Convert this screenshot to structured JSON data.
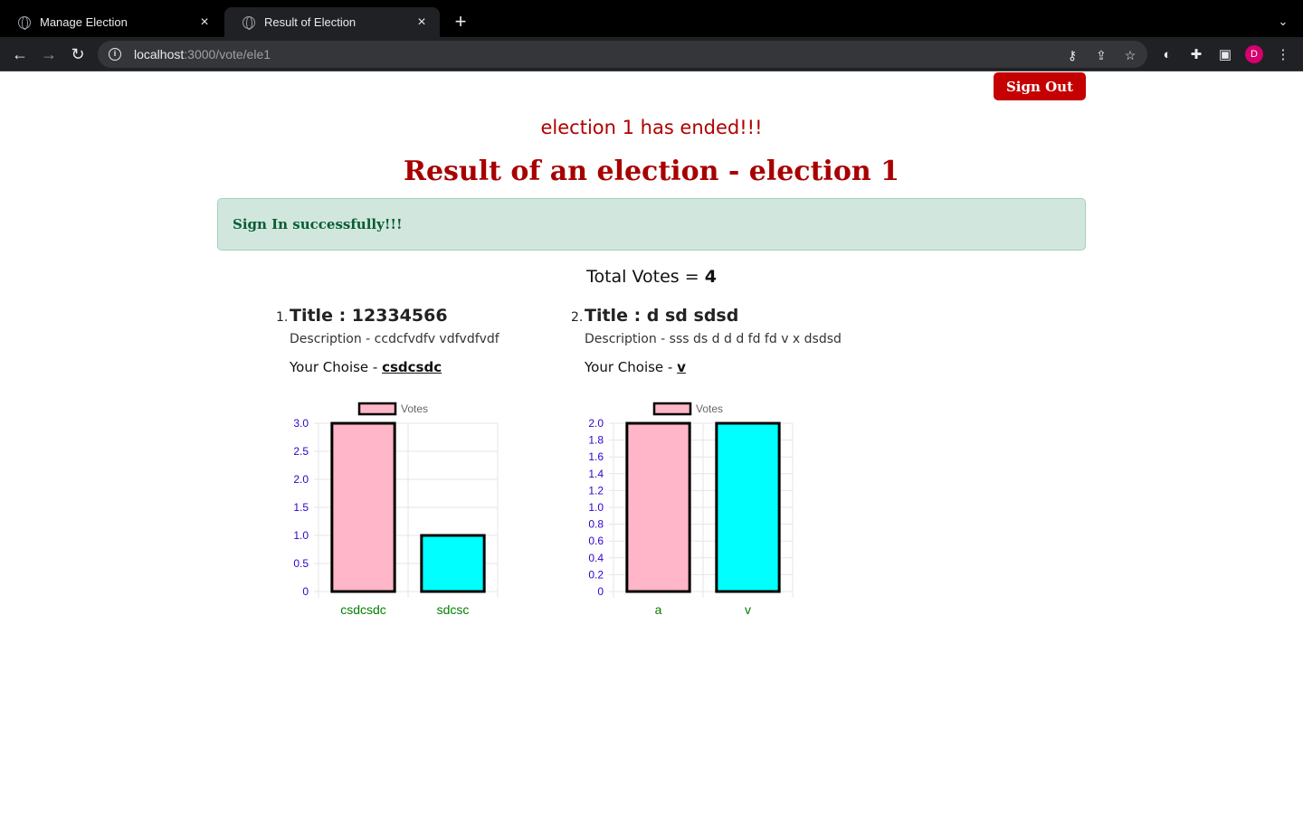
{
  "browser": {
    "tabs": [
      {
        "title": "Manage Election",
        "active": false
      },
      {
        "title": "Result of Election",
        "active": true
      }
    ],
    "url_host": "localhost",
    "url_path": ":3000/vote/ele1",
    "profile_initial": "D"
  },
  "header": {
    "signout_label": "Sign Out",
    "ended_text": "election 1 has ended!!!",
    "result_title": "Result of an election - election 1",
    "alert_text": "Sign In successfully!!!",
    "total_label": "Total Votes = ",
    "total_value": "4"
  },
  "questions": [
    {
      "number": "1.",
      "title": "Title : 12334566",
      "description": "Description - ccdcfvdfv vdfvdfvdf",
      "choice_label": "Your Choise - ",
      "choice_value": "csdcsdc"
    },
    {
      "number": "2.",
      "title": "Title : d sd sdsd",
      "description": "Description - sss ds d d d fd fd v x dsdsd",
      "choice_label": "Your Choise - ",
      "choice_value": "v"
    }
  ],
  "colors": {
    "bar_1": "#ffb6c8",
    "bar_2": "#00ffff",
    "tick_y": "#3300cc",
    "tick_x": "#008000"
  },
  "chart_data": [
    {
      "type": "bar",
      "categories": [
        "csdcsdc",
        "sdcsc"
      ],
      "series": [
        {
          "name": "Votes",
          "values": [
            3,
            1
          ]
        }
      ],
      "ylim": [
        0,
        3
      ],
      "yticks": [
        "0",
        "0.5",
        "1.0",
        "1.5",
        "2.0",
        "2.5",
        "3.0"
      ],
      "grid": true,
      "legend": "top"
    },
    {
      "type": "bar",
      "categories": [
        "a",
        "v"
      ],
      "series": [
        {
          "name": "Votes",
          "values": [
            2,
            2
          ]
        }
      ],
      "ylim": [
        0,
        2
      ],
      "yticks": [
        "0",
        "0.2",
        "0.4",
        "0.6",
        "0.8",
        "1.0",
        "1.2",
        "1.4",
        "1.6",
        "1.8",
        "2.0"
      ],
      "grid": true,
      "legend": "top"
    }
  ]
}
